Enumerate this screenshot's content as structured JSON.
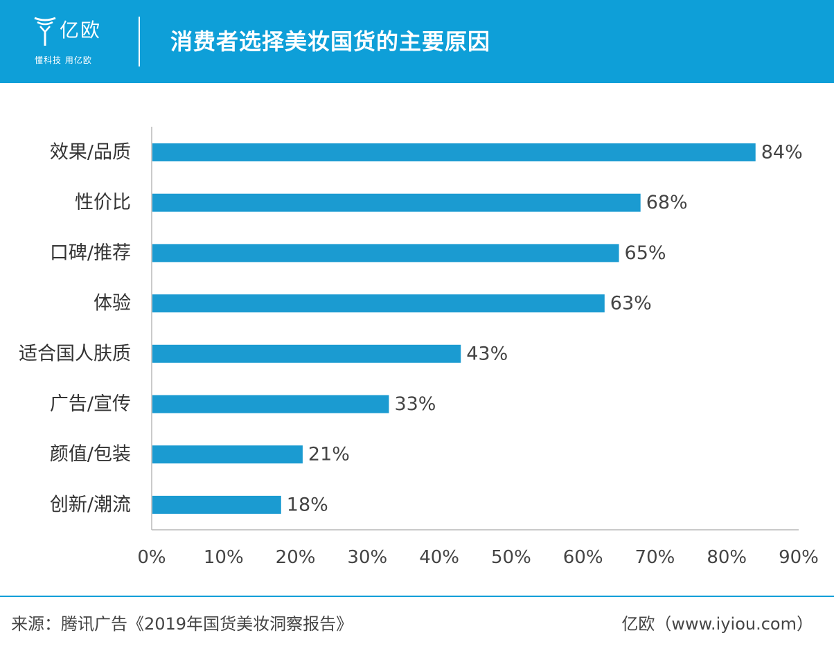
{
  "header": {
    "logo_text": "亿欧",
    "logo_slogan": "懂科技 用亿欧",
    "title": "消费者选择美妆国货的主要原因"
  },
  "colors": {
    "header_bg": "#0e9fd8",
    "bar": "#1b9bd1",
    "axis": "#b8b8b8"
  },
  "icons": {
    "logo": "yiou-logo-icon"
  },
  "chart_data": {
    "type": "bar",
    "orientation": "horizontal",
    "title": "消费者选择美妆国货的主要原因",
    "categories": [
      "效果/品质",
      "性价比",
      "口碑/推荐",
      "体验",
      "适合国人肤质",
      "广告/宣传",
      "颜值/包装",
      "创新/潮流"
    ],
    "values": [
      84,
      68,
      65,
      63,
      43,
      33,
      21,
      18
    ],
    "value_labels": [
      "84%",
      "68%",
      "65%",
      "63%",
      "43%",
      "33%",
      "21%",
      "18%"
    ],
    "xlim": [
      0,
      90
    ],
    "xticks": [
      0,
      10,
      20,
      30,
      40,
      50,
      60,
      70,
      80,
      90
    ],
    "xtick_labels": [
      "0%",
      "10%",
      "20%",
      "30%",
      "40%",
      "50%",
      "60%",
      "70%",
      "80%",
      "90%"
    ],
    "xlabel": "",
    "ylabel": "",
    "grid": false,
    "legend": "none"
  },
  "footer": {
    "source": "来源：腾讯广告《2019年国货美妆洞察报告》",
    "brand": "亿欧（www.iyiou.com）"
  }
}
